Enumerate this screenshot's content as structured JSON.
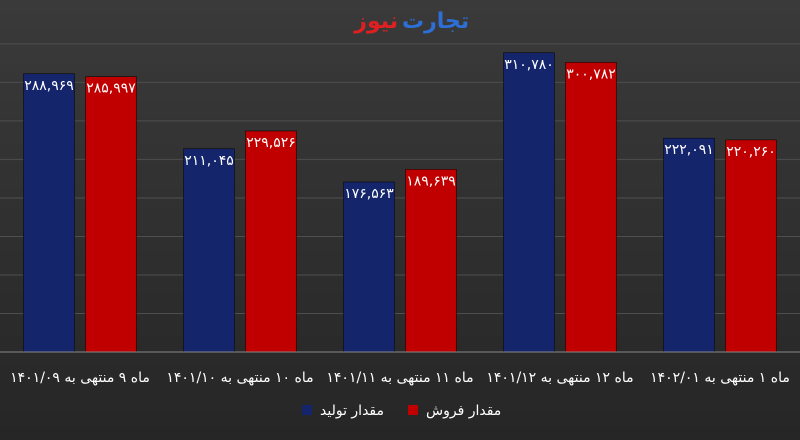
{
  "chart_data": {
    "type": "bar",
    "logo": {
      "first": "تجارت",
      "second": "نیوز"
    },
    "categories": [
      "ماه ۹ منتهی به ۱۴۰۱/۰۹",
      "ماه ۱۰ منتهی به ۱۴۰۱/۱۰",
      "ماه ۱۱ منتهی به ۱۴۰۱/۱۱",
      "ماه ۱۲ منتهی به ۱۴۰۱/۱۲",
      "ماه ۱ منتهی به ۱۴۰۲/۰۱"
    ],
    "series": [
      {
        "name": "مقدار تولید",
        "color": "#15256b",
        "values": [
          288969,
          211045,
          176563,
          310780,
          222091
        ],
        "value_labels": [
          "۲۸۸,۹۶۹",
          "۲۱۱,۰۴۵",
          "۱۷۶,۵۶۳",
          "۳۱۰,۷۸۰",
          "۲۲۲,۰۹۱"
        ]
      },
      {
        "name": "مقدار فروش",
        "color": "#c00000",
        "values": [
          285997,
          229526,
          189639,
          300782,
          220260
        ],
        "value_labels": [
          "۲۸۵,۹۹۷",
          "۲۲۹,۵۲۶",
          "۱۸۹,۶۳۹",
          "۳۰۰,۷۸۲",
          "۲۲۰,۲۶۰"
        ]
      }
    ],
    "ylim": [
      0,
      350000
    ],
    "yticks": [
      0,
      40000,
      80000,
      120000,
      160000,
      200000,
      240000,
      280000,
      320000
    ],
    "grid": true
  }
}
